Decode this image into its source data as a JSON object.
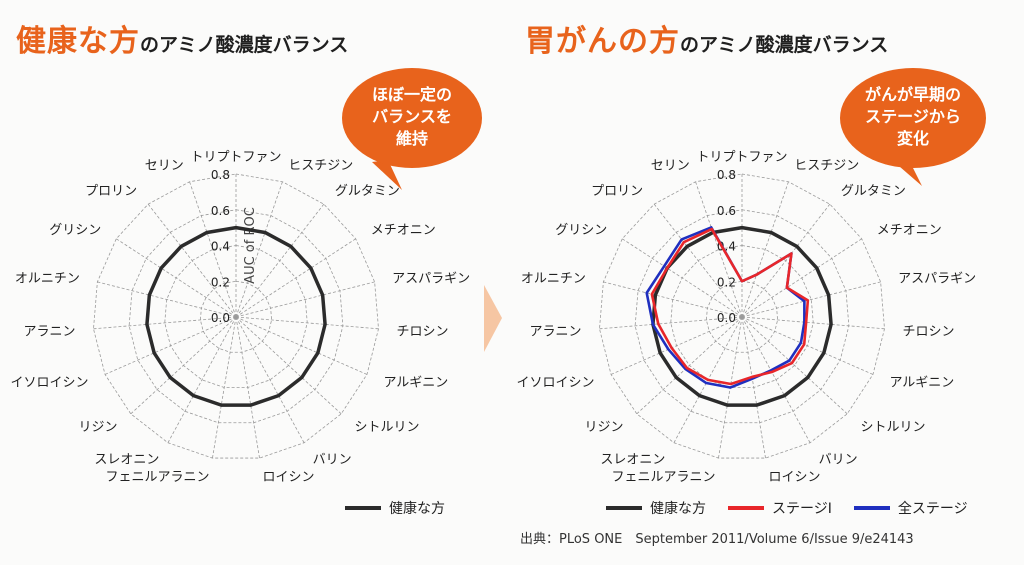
{
  "left_panel": {
    "title_accent": "健康な方",
    "title_rest": "のアミノ酸濃度バランス",
    "bubble": [
      "ほぼ一定の",
      "バランスを",
      "維持"
    ]
  },
  "right_panel": {
    "title_accent": "胃がんの方",
    "title_rest": "のアミノ酸濃度バランス",
    "bubble": [
      "がんが早期の",
      "ステージから",
      "変化"
    ]
  },
  "source_text": "出典：PLoS ONE　September 2011/Volume 6/Issue 9/e24143",
  "colors": {
    "accent": "#e8631c",
    "healthy": "#2b2b2b",
    "stage1": "#e8262a",
    "all_stages": "#1f2fbf",
    "arrow": "#f6c6a3"
  },
  "chart_data": [
    {
      "type": "radar",
      "axis_label": "AUC of ROC",
      "rlim": [
        0,
        0.8
      ],
      "ticks": [
        "0.0",
        "0.2",
        "0.4",
        "0.6",
        "0.8"
      ],
      "categories": [
        "トリプトファン",
        "ヒスチジン",
        "グルタミン",
        "メチオニン",
        "アスパラギン",
        "チロシン",
        "アルギニン",
        "シトルリン",
        "バリン",
        "ロイシン",
        "フェニルアラニン",
        "スレオニン",
        "リジン",
        "イソロイシン",
        "アラニン",
        "オルニチン",
        "グリシン",
        "プロリン",
        "セリン"
      ],
      "series": [
        {
          "name": "健康な方",
          "values": [
            0.5,
            0.5,
            0.5,
            0.5,
            0.5,
            0.5,
            0.5,
            0.5,
            0.5,
            0.5,
            0.5,
            0.5,
            0.5,
            0.5,
            0.5,
            0.5,
            0.5,
            0.5,
            0.5
          ]
        }
      ],
      "legend": [
        "健康な方"
      ]
    },
    {
      "type": "radar",
      "rlim": [
        0,
        0.8
      ],
      "ticks": [
        "0.0",
        "0.2",
        "0.4",
        "0.6",
        "0.8"
      ],
      "categories": [
        "トリプトファン",
        "ヒスチジン",
        "グルタミン",
        "メチオニン",
        "アスパラギン",
        "チロシン",
        "アルギニン",
        "シトルリン",
        "バリン",
        "ロイシン",
        "フェニルアラニン",
        "スレオニン",
        "リジン",
        "イソロイシン",
        "アラニン",
        "オルニチン",
        "グリシン",
        "プロリン",
        "セリン"
      ],
      "series": [
        {
          "name": "健康な方",
          "values": [
            0.5,
            0.5,
            0.5,
            0.5,
            0.5,
            0.5,
            0.5,
            0.5,
            0.5,
            0.5,
            0.5,
            0.5,
            0.5,
            0.5,
            0.5,
            0.5,
            0.5,
            0.5,
            0.5
          ]
        },
        {
          "name": "ステージI",
          "values": [
            0.2,
            0.25,
            0.45,
            0.3,
            0.38,
            0.36,
            0.38,
            0.38,
            0.35,
            0.34,
            0.38,
            0.4,
            0.42,
            0.43,
            0.47,
            0.52,
            0.5,
            0.53,
            0.52
          ]
        },
        {
          "name": "全ステージ",
          "values": [
            0.2,
            0.25,
            0.45,
            0.3,
            0.36,
            0.35,
            0.36,
            0.36,
            0.34,
            0.35,
            0.4,
            0.42,
            0.43,
            0.45,
            0.5,
            0.55,
            0.52,
            0.55,
            0.53
          ]
        }
      ],
      "legend": [
        "健康な方",
        "ステージI",
        "全ステージ"
      ]
    }
  ]
}
